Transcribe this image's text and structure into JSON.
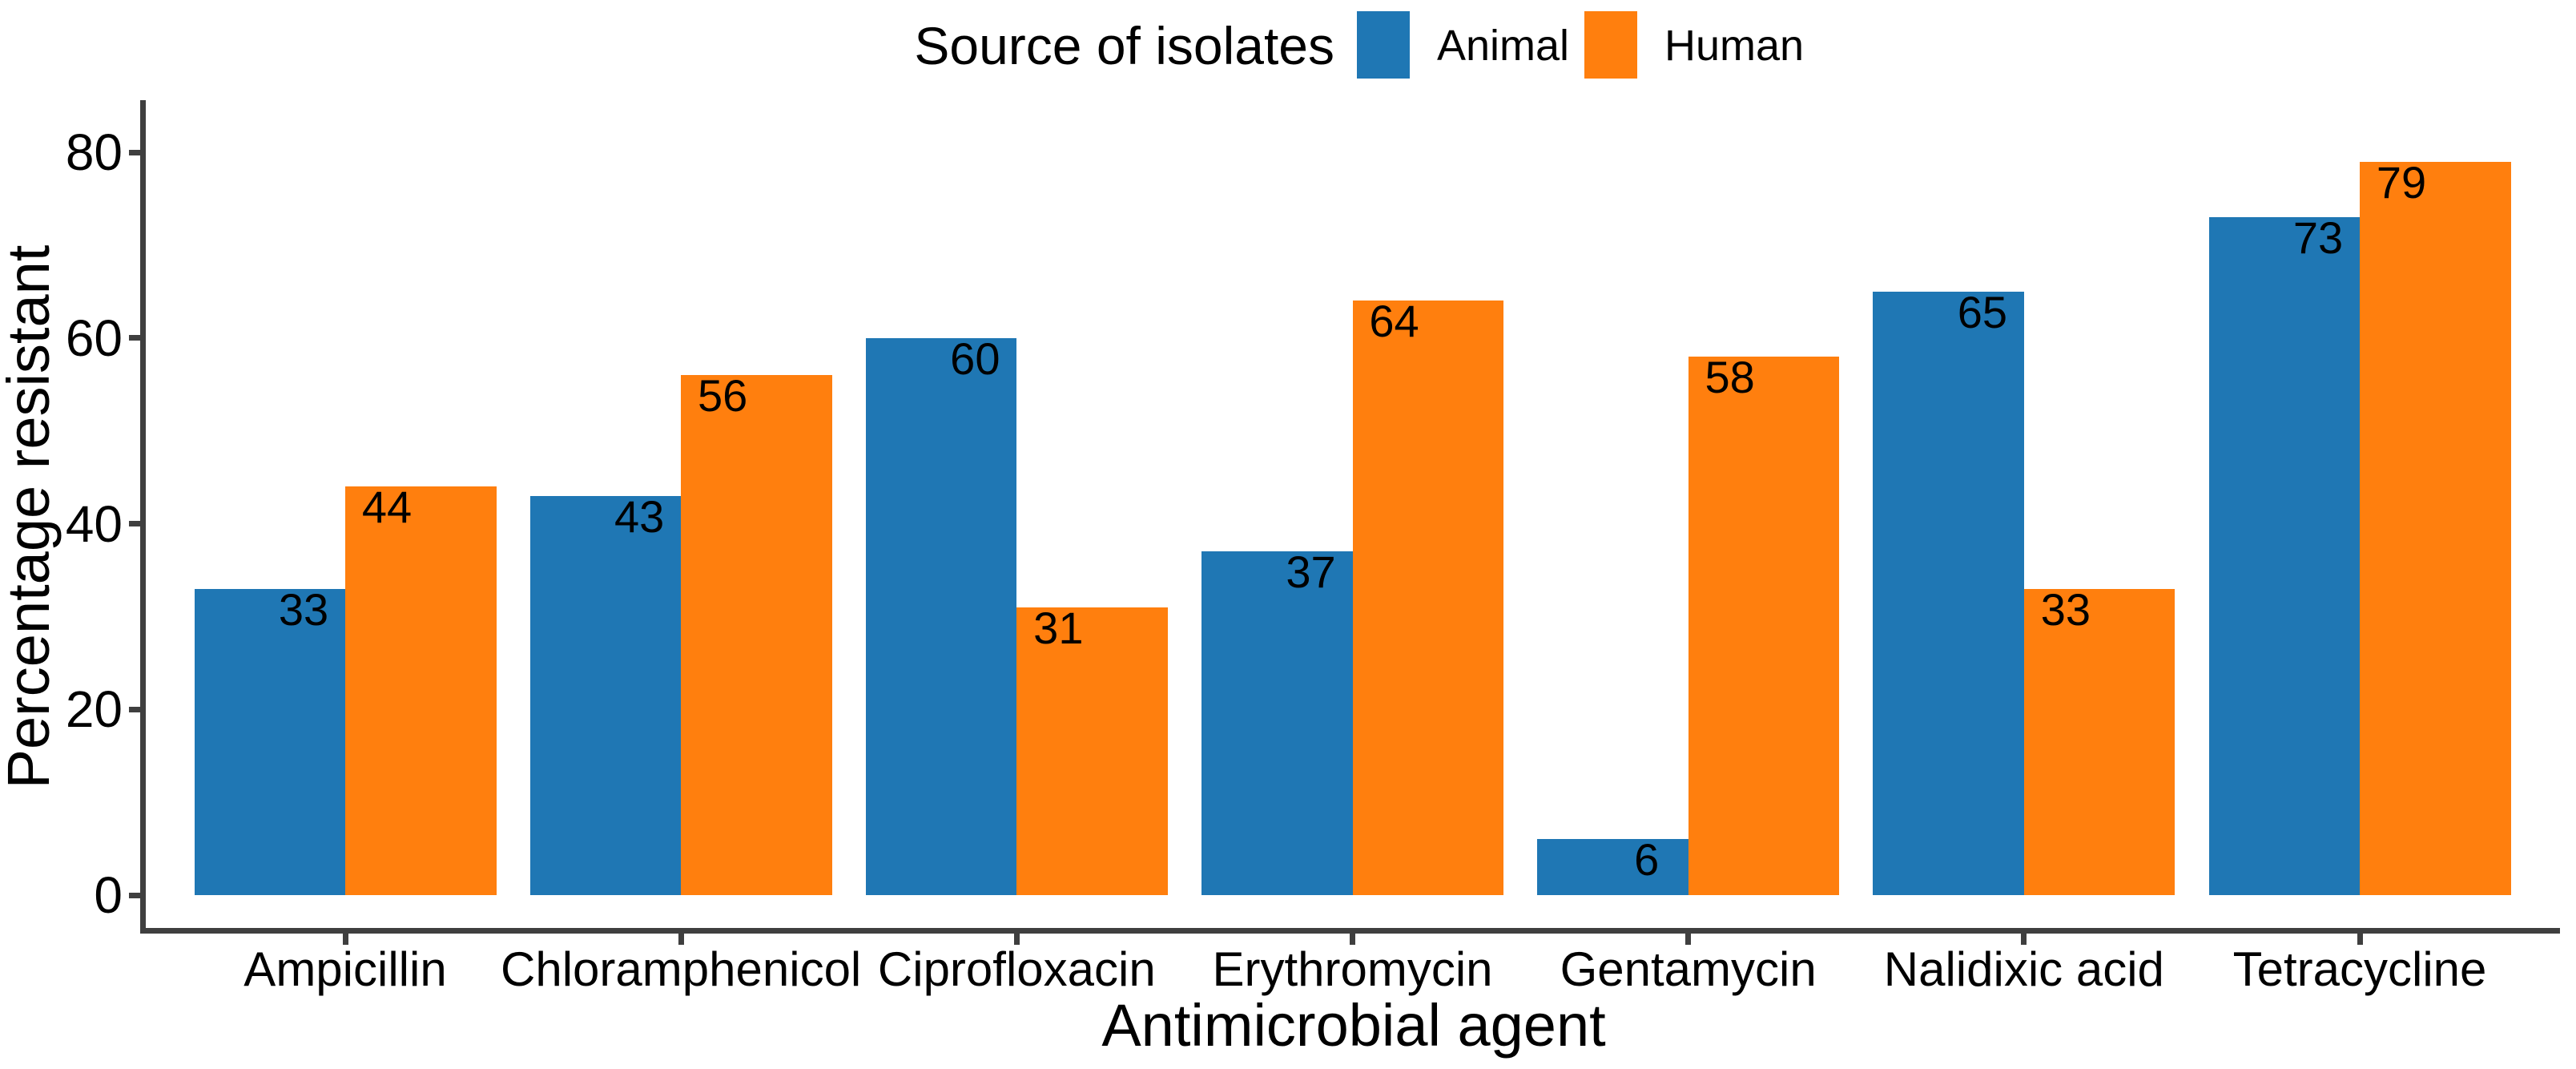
{
  "chart_data": {
    "type": "bar",
    "categories": [
      "Ampicillin",
      "Chloramphenicol",
      "Ciprofloxacin",
      "Erythromycin",
      "Gentamycin",
      "Nalidixic acid",
      "Tetracycline"
    ],
    "series": [
      {
        "name": "Animal",
        "color": "#1f77b4",
        "values": [
          33,
          43,
          60,
          37,
          6,
          65,
          73
        ]
      },
      {
        "name": "Human",
        "color": "#ff7f0e",
        "values": [
          44,
          56,
          31,
          64,
          58,
          33,
          79
        ]
      }
    ],
    "xlabel": "Antimicrobial agent",
    "ylabel": "Percentage resistant",
    "yticks": [
      0,
      20,
      40,
      60,
      80
    ],
    "ylim": [
      0,
      83
    ],
    "bar_value_labels": true,
    "grid": false,
    "legend_position": "top"
  },
  "legend": {
    "title": "Source of isolates",
    "items": [
      {
        "label": "Animal",
        "color": "#1f77b4"
      },
      {
        "label": "Human",
        "color": "#ff7f0e"
      }
    ]
  },
  "colors": {
    "axis_line": "#3f3f3f",
    "text": "#000000",
    "background": "#ffffff"
  }
}
